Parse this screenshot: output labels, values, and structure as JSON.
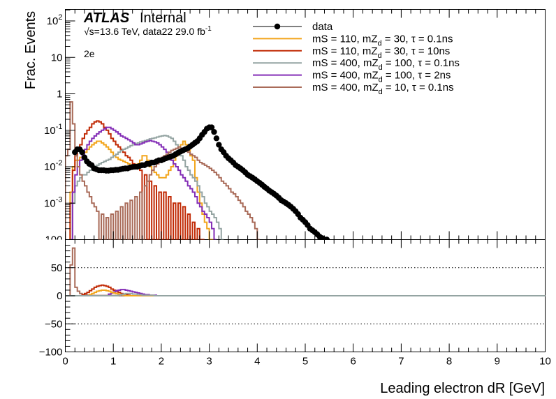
{
  "chart_data": [
    {
      "type": "line",
      "ylabel": "Frac. Events",
      "yscale": "log",
      "xlim": [
        0,
        10
      ],
      "ylim": [
        0.0001,
        200
      ],
      "y_tick_labels": [
        "10^-3",
        "10^-2",
        "10^-1",
        "1",
        "10",
        "10^2"
      ],
      "annotations": {
        "atlas": "ATLAS",
        "internal": "Internal",
        "energy": "√s=13.6 TeV, data22 29.0 fb",
        "lumi_unit_exp": "-1",
        "channel": "2e"
      },
      "legend_position": "top-center",
      "series": [
        {
          "name": "data",
          "style": "markers",
          "color": "#000000",
          "x": [
            0.2,
            0.25,
            0.3,
            0.35,
            0.4,
            0.45,
            0.5,
            0.55,
            0.6,
            0.65,
            0.7,
            0.75,
            0.8,
            0.85,
            0.9,
            0.95,
            1.0,
            1.05,
            1.1,
            1.15,
            1.2,
            1.25,
            1.3,
            1.35,
            1.4,
            1.45,
            1.5,
            1.55,
            1.6,
            1.65,
            1.7,
            1.75,
            1.8,
            1.85,
            1.9,
            1.95,
            2.0,
            2.05,
            2.1,
            2.15,
            2.2,
            2.25,
            2.3,
            2.35,
            2.4,
            2.45,
            2.5,
            2.55,
            2.6,
            2.65,
            2.7,
            2.75,
            2.8,
            2.85,
            2.9,
            2.95,
            3.0,
            3.05,
            3.1,
            3.15,
            3.2,
            3.25,
            3.3,
            3.35,
            3.4,
            3.45,
            3.5,
            3.55,
            3.6,
            3.65,
            3.7,
            3.75,
            3.8,
            3.85,
            3.9,
            3.95,
            4.0,
            4.05,
            4.1,
            4.15,
            4.2,
            4.25,
            4.3,
            4.35,
            4.4,
            4.45,
            4.5,
            4.55,
            4.6,
            4.65,
            4.7,
            4.75,
            4.8,
            4.85,
            4.9,
            4.95,
            5.0,
            5.05,
            5.1,
            5.15,
            5.2,
            5.25,
            5.3,
            5.35,
            5.4,
            5.45
          ],
          "y": [
            0.025,
            0.03,
            0.03,
            0.025,
            0.018,
            0.014,
            0.012,
            0.011,
            0.009,
            0.0085,
            0.008,
            0.008,
            0.008,
            0.0078,
            0.0078,
            0.008,
            0.008,
            0.0082,
            0.0082,
            0.0085,
            0.0088,
            0.009,
            0.009,
            0.0095,
            0.0098,
            0.01,
            0.01,
            0.0105,
            0.011,
            0.011,
            0.012,
            0.012,
            0.013,
            0.013,
            0.014,
            0.015,
            0.015,
            0.016,
            0.017,
            0.018,
            0.019,
            0.02,
            0.022,
            0.024,
            0.026,
            0.028,
            0.03,
            0.032,
            0.036,
            0.04,
            0.045,
            0.05,
            0.06,
            0.075,
            0.09,
            0.11,
            0.12,
            0.12,
            0.09,
            0.06,
            0.04,
            0.03,
            0.025,
            0.02,
            0.017,
            0.015,
            0.013,
            0.011,
            0.01,
            0.009,
            0.008,
            0.007,
            0.006,
            0.0055,
            0.005,
            0.0045,
            0.004,
            0.0036,
            0.0032,
            0.0028,
            0.0025,
            0.0022,
            0.002,
            0.0018,
            0.0016,
            0.0014,
            0.0012,
            0.0011,
            0.001,
            0.0009,
            0.0008,
            0.0007,
            0.0006,
            0.0005,
            0.0004,
            0.00035,
            0.0003,
            0.00025,
            0.0002,
            0.00018,
            0.00016,
            0.00014,
            0.00012,
            0.00011,
            0.0001,
            0.0001
          ]
        },
        {
          "name": "mS = 110, mZ = 30, τ = 0.1ns",
          "name_main": "mS = 110, mZ",
          "name_sub": "d",
          "name_rest": " = 30, τ = 0.1ns",
          "style": "step",
          "color": "#f2a51b",
          "edges_start": 0.1,
          "bin_width": 0.05,
          "y": [
            0.002,
            0.01,
            0.015,
            0.015,
            0.018,
            0.02,
            0.025,
            0.03,
            0.035,
            0.04,
            0.045,
            0.05,
            0.05,
            0.045,
            0.04,
            0.035,
            0.03,
            0.025,
            0.02,
            0.018,
            0.016,
            0.015,
            0.014,
            0.013,
            0.012,
            0.011,
            0.01,
            0.01,
            0.012,
            0.015,
            0.02,
            0.02,
            0.015,
            0.01,
            0.008,
            0.007,
            0.006,
            0.005,
            0.005,
            0.005,
            0.006,
            0.008,
            0.01,
            0.015,
            0.02,
            0.03,
            0.04,
            0.05,
            0.04,
            0.03,
            0.02,
            0.015,
            0.005,
            0.002,
            0.001,
            0.0005,
            0.0003,
            0.0002,
            0.0001,
            0.0001
          ]
        },
        {
          "name": "mS = 110, mZ = 30, τ = 10ns",
          "name_main": "mS = 110, mZ",
          "name_sub": "d",
          "name_rest": " = 30, τ = 10ns",
          "style": "step",
          "color": "#c12a05",
          "edges_start": 0.1,
          "bin_width": 0.05,
          "y": [
            0.001,
            0.008,
            0.02,
            0.03,
            0.04,
            0.06,
            0.08,
            0.1,
            0.12,
            0.15,
            0.17,
            0.18,
            0.17,
            0.15,
            0.12,
            0.1,
            0.08,
            0.06,
            0.05,
            0.04,
            0.035,
            0.03,
            0.025,
            0.02,
            0.018,
            0.015,
            0.012,
            0.01,
            0.01,
            0.008,
            0.0001,
            0.006,
            0.0001,
            0.004,
            0.0001,
            0.003,
            0.0001,
            0.002,
            0.0001,
            0.002,
            0.0001,
            0.0015,
            0.0001,
            0.001,
            0.0001,
            0.001,
            0.0001,
            0.0008,
            0.0001,
            0.0005,
            0.0001,
            0.0003,
            0.0001,
            0.0002,
            0.0001,
            0.0001
          ]
        },
        {
          "name": "mS = 400, mZ = 100, τ = 0.1ns",
          "name_main": "mS = 400, mZ",
          "name_sub": "d",
          "name_rest": " = 100, τ = 0.1ns",
          "style": "step",
          "color": "#94a4a2",
          "edges_start": 0.1,
          "bin_width": 0.05,
          "y": [
            0.0001,
            0.001,
            0.003,
            0.004,
            0.005,
            0.006,
            0.006,
            0.007,
            0.008,
            0.009,
            0.01,
            0.011,
            0.012,
            0.013,
            0.014,
            0.015,
            0.016,
            0.018,
            0.02,
            0.022,
            0.025,
            0.028,
            0.03,
            0.032,
            0.035,
            0.038,
            0.04,
            0.042,
            0.045,
            0.048,
            0.05,
            0.052,
            0.055,
            0.058,
            0.06,
            0.062,
            0.065,
            0.068,
            0.07,
            0.072,
            0.07,
            0.065,
            0.06,
            0.05,
            0.04,
            0.03,
            0.02,
            0.015,
            0.01,
            0.008,
            0.006,
            0.005,
            0.004,
            0.003,
            0.002,
            0.0015,
            0.001,
            0.0008,
            0.0006,
            0.0005,
            0.0004,
            0.0003,
            0.0002,
            0.0001
          ]
        },
        {
          "name": "mS = 400, mZ = 100, τ = 2ns",
          "name_main": "mS = 400, mZ",
          "name_sub": "d",
          "name_rest": " = 100, τ = 2ns",
          "style": "step",
          "color": "#832db6",
          "edges_start": 0.1,
          "bin_width": 0.05,
          "y": [
            0.0001,
            0.002,
            0.006,
            0.01,
            0.015,
            0.02,
            0.03,
            0.04,
            0.05,
            0.06,
            0.07,
            0.08,
            0.09,
            0.1,
            0.11,
            0.12,
            0.12,
            0.11,
            0.1,
            0.09,
            0.08,
            0.07,
            0.065,
            0.06,
            0.055,
            0.05,
            0.045,
            0.04,
            0.04,
            0.042,
            0.045,
            0.048,
            0.05,
            0.052,
            0.05,
            0.048,
            0.045,
            0.04,
            0.035,
            0.03,
            0.025,
            0.02,
            0.015,
            0.012,
            0.01,
            0.008,
            0.006,
            0.005,
            0.004,
            0.003,
            0.0025,
            0.002,
            0.0015,
            0.001,
            0.0008,
            0.0006,
            0.0005,
            0.0004,
            0.0003,
            0.0002,
            0.0001
          ]
        },
        {
          "name": "mS = 400, mZ = 10, τ = 0.1ns",
          "name_main": "mS = 400, mZ",
          "name_sub": "d",
          "name_rest": " = 10, τ = 0.1ns",
          "style": "step",
          "color": "#a96b59",
          "edges_start": 0.0,
          "bin_width": 0.05,
          "y": [
            0.02,
            0.03,
            0.6,
            0.15,
            0.02,
            0.01,
            0.006,
            0.004,
            0.003,
            0.002,
            0.0015,
            0.001,
            0.0008,
            0.0006,
            0.0001,
            0.0005,
            0.0001,
            0.0004,
            0.0001,
            0.0005,
            0.0001,
            0.0006,
            0.0001,
            0.0008,
            0.0001,
            0.001,
            0.0001,
            0.0012,
            0.0001,
            0.0015,
            0.0001,
            0.002,
            0.0001,
            0.003,
            0.004,
            0.006,
            0.008,
            0.01,
            0.012,
            0.015,
            0.018,
            0.02,
            0.022,
            0.025,
            0.028,
            0.03,
            0.032,
            0.035,
            0.032,
            0.03,
            0.028,
            0.025,
            0.022,
            0.02,
            0.018,
            0.015,
            0.013,
            0.012,
            0.011,
            0.01,
            0.009,
            0.008,
            0.007,
            0.006,
            0.005,
            0.004,
            0.0035,
            0.003,
            0.0025,
            0.002,
            0.0018,
            0.0015,
            0.0012,
            0.001,
            0.0008,
            0.0006,
            0.0005,
            0.0004,
            0.0003,
            0.0002,
            0.0001
          ]
        }
      ]
    },
    {
      "type": "line",
      "xlabel": "Leading electron dR [GeV]",
      "xlim": [
        0,
        10
      ],
      "ylim": [
        -100,
        100
      ],
      "x_tick_labels": [
        "0",
        "1",
        "2",
        "3",
        "4",
        "5",
        "6",
        "7",
        "8",
        "9",
        "10"
      ],
      "y_tick_labels": [
        "−100",
        "−50",
        "0",
        "50",
        "100"
      ],
      "reference_lines": [
        50,
        0,
        -50
      ],
      "series": [
        {
          "name": "mS = 400, mZ = 10, τ = 0.1ns",
          "color": "#a96b59",
          "edges_start": 0.1,
          "bin_width": 0.05,
          "y": [
            55,
            85,
            15,
            8,
            4,
            2,
            1.5,
            1,
            1,
            0.5,
            0.5,
            0.5,
            0.5,
            0.5,
            0.5,
            0.5,
            0.5,
            0.5,
            0.5,
            0.5
          ]
        },
        {
          "name": "mS = 110, mZ = 30, τ = 10ns",
          "color": "#c12a05",
          "edges_start": 0.35,
          "bin_width": 0.05,
          "y": [
            2,
            4,
            6,
            9,
            12,
            15,
            17,
            18,
            19,
            18,
            17,
            15,
            12,
            10,
            8,
            6,
            4,
            3,
            2,
            1
          ]
        },
        {
          "name": "mS = 400, mZ = 100, τ = 2ns",
          "color": "#832db6",
          "edges_start": 0.9,
          "bin_width": 0.05,
          "y": [
            3,
            5,
            7,
            9,
            10,
            11,
            11,
            10,
            9,
            8,
            7,
            6,
            5,
            4,
            3,
            2,
            2,
            1,
            1,
            1
          ]
        },
        {
          "name": "mS = 110, mZ = 30, τ = 0.1ns",
          "color": "#f2a51b",
          "edges_start": 0.5,
          "bin_width": 0.05,
          "y": [
            2,
            4,
            6,
            8,
            9,
            10,
            10,
            9,
            8,
            6,
            5,
            4,
            3,
            2,
            1
          ]
        },
        {
          "name": "mS = 400, mZ = 100, τ = 0.1ns",
          "color": "#94a4a2",
          "edges_start": 1.1,
          "bin_width": 0.05,
          "y": [
            1,
            2,
            3,
            4,
            4,
            4,
            3,
            3,
            2,
            2,
            1,
            1,
            1,
            1,
            1
          ]
        }
      ]
    }
  ]
}
